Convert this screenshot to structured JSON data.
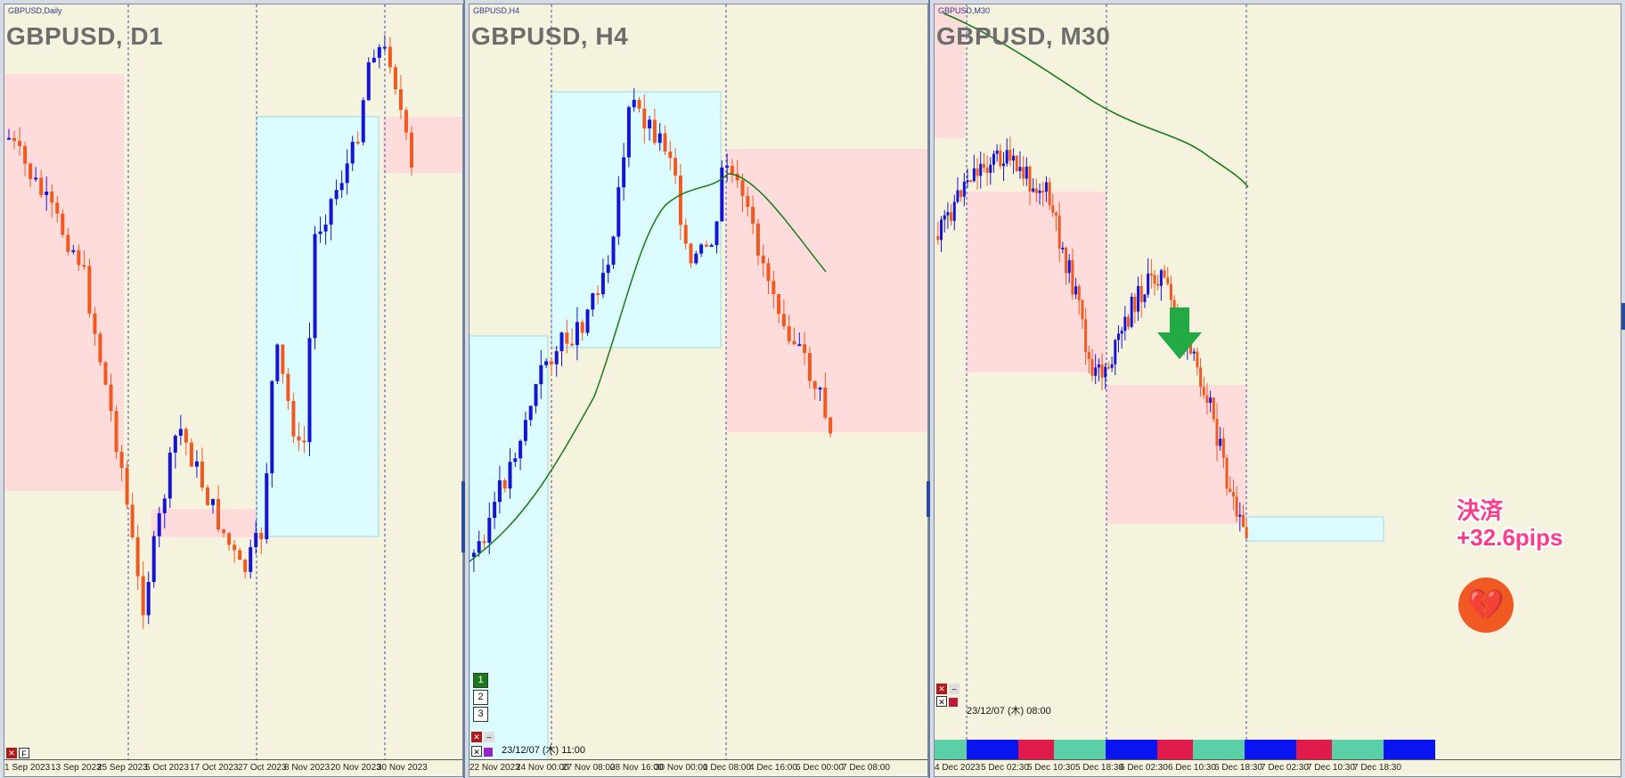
{
  "colors": {
    "bull": "#1414d2",
    "bear": "#f05a22",
    "pink_zone": "#ffdcdc",
    "cyan_zone": "#ddfcff",
    "ma_line": "#1a7a1a",
    "callout": "#ff3d8b",
    "heart": "#f05a22",
    "arrow": "#22aa44"
  },
  "panels": [
    {
      "tag": "GBPUSD,Daily",
      "title": "GBPUSD, D1",
      "xlabels": [
        "1 Sep 2023",
        "13 Sep 2023",
        "25 Sep 2023",
        "5 Oct 2023",
        "17 Oct 2023",
        "27 Oct 2023",
        "8 Nov 2023",
        "20 Nov 2023",
        "30 Nov 2023"
      ]
    },
    {
      "tag": "GBPUSD,H4",
      "title": "GBPUSD, H4",
      "xlabels": [
        "22 Nov 2023",
        "24 Nov 00:00",
        "27 Nov 08:00",
        "28 Nov 16:00",
        "30 Nov 00:00",
        "1 Dec 08:00",
        "4 Dec 16:00",
        "6 Dec 00:00",
        "7 Dec 08:00"
      ],
      "timestamp": "23/12/07 (木) 11:00",
      "buttons": [
        "1",
        "2",
        "3"
      ]
    },
    {
      "tag": "GBPUSD,M30",
      "title": "GBPUSD, M30",
      "xlabels": [
        "4 Dec 2023",
        "5 Dec 02:30",
        "5 Dec 10:30",
        "5 Dec 18:30",
        "6 Dec 02:30",
        "6 Dec 10:30",
        "6 Dec 18:30",
        "7 Dec 02:30",
        "7 Dec 10:30",
        "7 Dec 18:30"
      ],
      "timestamp": "23/12/07 (木) 08:00",
      "callout_line1": "決済",
      "callout_line2": "+32.6pips",
      "heart_icon": "broken-heart-icon",
      "arrow_icon": "down-arrow-icon"
    }
  ]
}
